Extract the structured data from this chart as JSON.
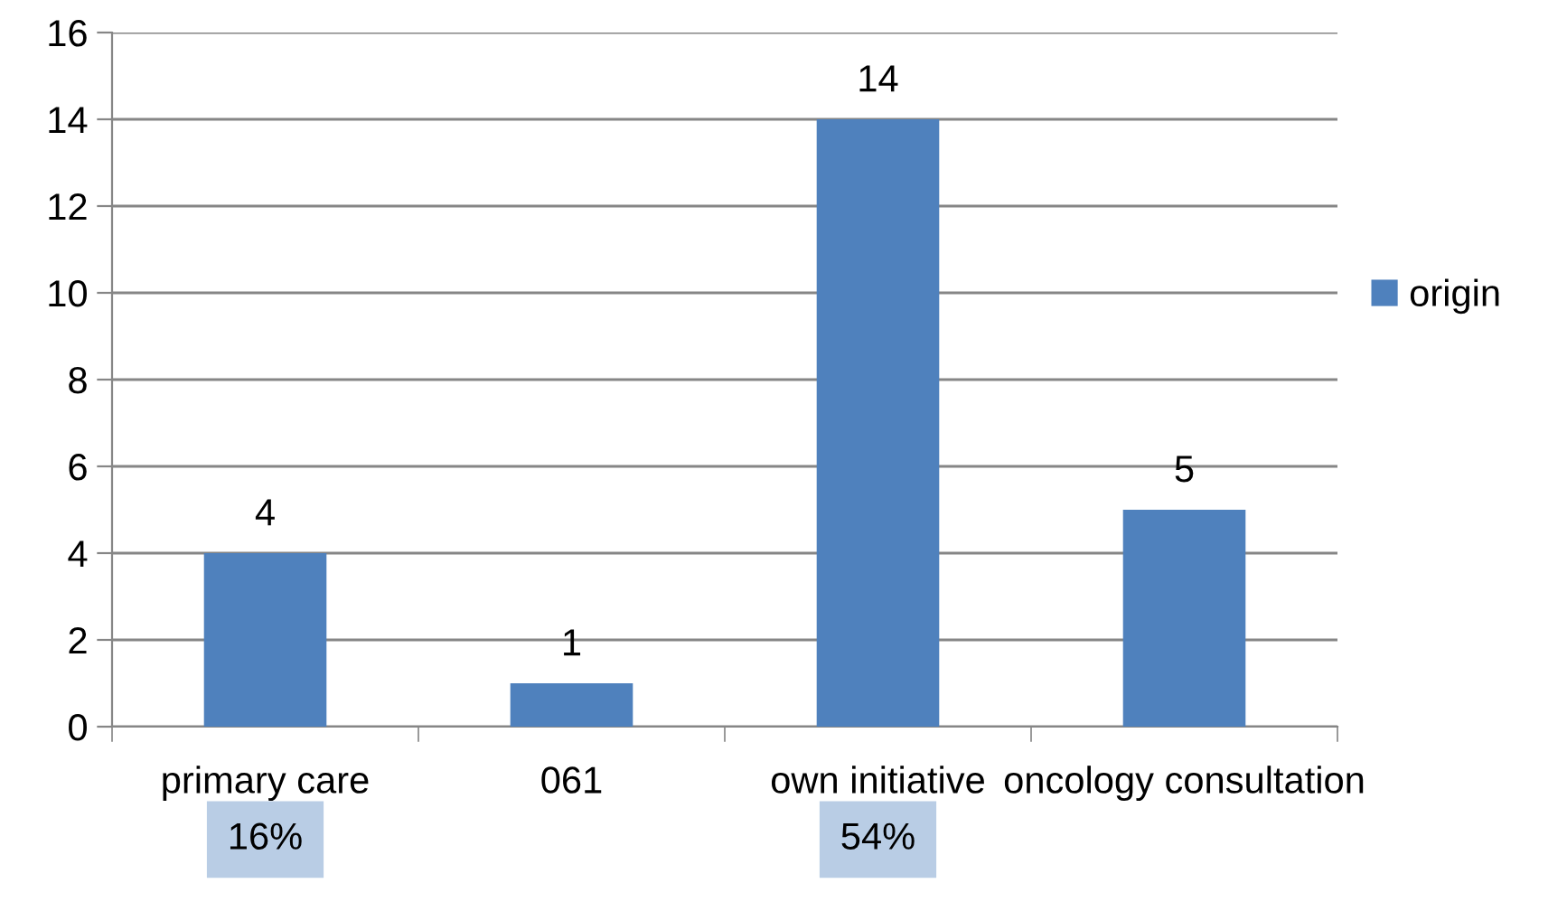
{
  "chart_data": {
    "type": "bar",
    "categories": [
      "primary care",
      "061",
      "own initiative",
      "oncology consultation"
    ],
    "series": [
      {
        "name": "origin",
        "color": "#4f81bd",
        "values": [
          4,
          1,
          14,
          5
        ]
      }
    ],
    "ylim": [
      0,
      16
    ],
    "yticks": [
      0,
      2,
      4,
      6,
      8,
      10,
      12,
      14,
      16
    ],
    "grid": "y",
    "legend": "right",
    "data_labels": true,
    "annotations": [
      "16%",
      "54%"
    ]
  }
}
